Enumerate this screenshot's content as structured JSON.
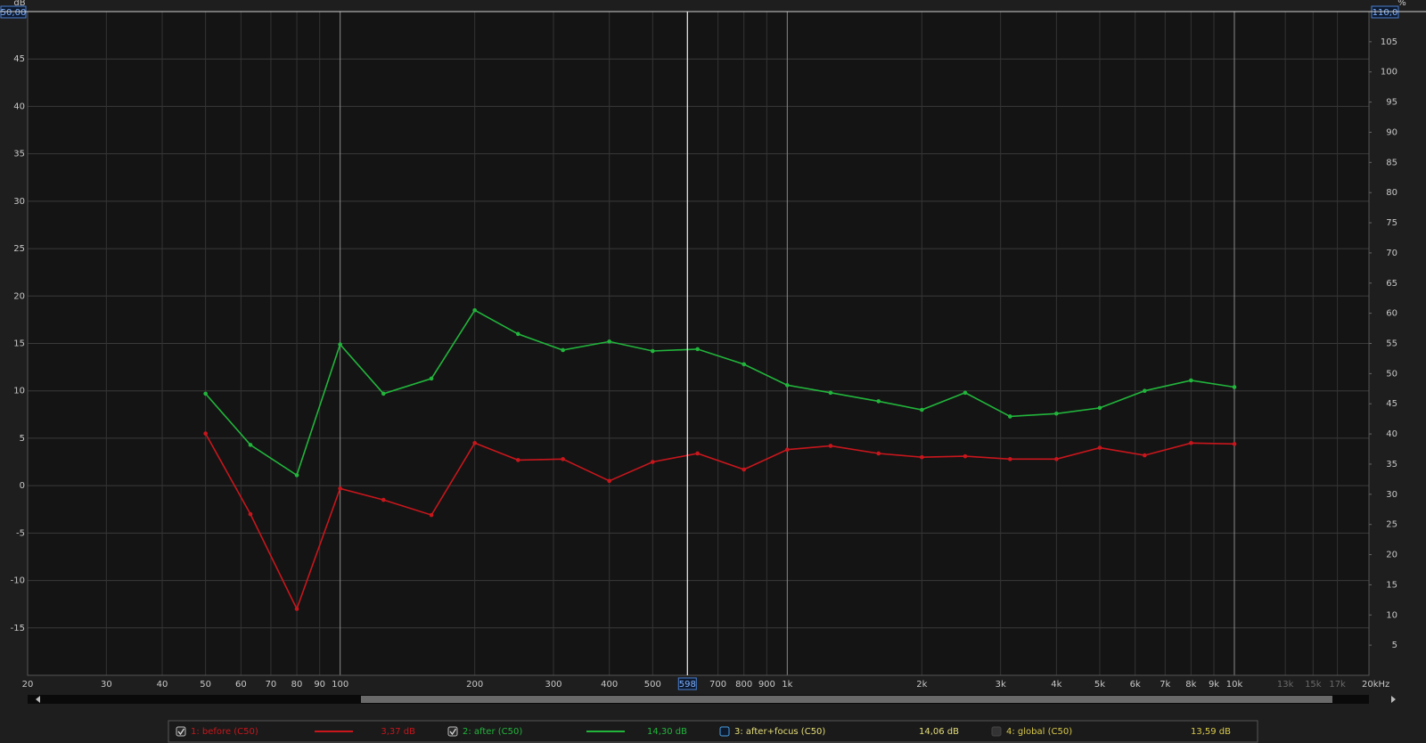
{
  "chart_data": {
    "type": "line",
    "y_label": "dB",
    "y2_label": "%",
    "log_x": true,
    "grid": true,
    "xlim": [
      20,
      20000
    ],
    "xticks": [
      20,
      30,
      40,
      50,
      60,
      70,
      80,
      90,
      100,
      200,
      300,
      400,
      500,
      700,
      800,
      900,
      {
        "value": 1000,
        "label": "1k"
      },
      {
        "value": 2000,
        "label": "2k"
      },
      {
        "value": 3000,
        "label": "3k"
      },
      {
        "value": 4000,
        "label": "4k"
      },
      {
        "value": 5000,
        "label": "5k"
      },
      {
        "value": 6000,
        "label": "6k"
      },
      {
        "value": 7000,
        "label": "7k"
      },
      {
        "value": 8000,
        "label": "8k"
      },
      {
        "value": 9000,
        "label": "9k"
      },
      {
        "value": 10000,
        "label": "10k"
      },
      {
        "value": 13000,
        "label": "13k"
      },
      {
        "value": 15000,
        "label": "15k"
      },
      {
        "value": 17000,
        "label": "17k"
      },
      {
        "value": 20000,
        "label": "20kHz"
      }
    ],
    "ylim": [
      -20,
      50
    ],
    "yticks": [
      -15,
      -10,
      -5,
      0,
      5,
      10,
      15,
      20,
      25,
      30,
      35,
      40,
      45,
      {
        "value": 50,
        "label": "50,00"
      }
    ],
    "y2lim": [
      0,
      110
    ],
    "y2ticks": [
      5,
      10,
      15,
      20,
      25,
      30,
      35,
      40,
      45,
      50,
      55,
      60,
      65,
      70,
      75,
      80,
      85,
      90,
      95,
      100,
      105,
      {
        "value": 110,
        "label": "110,0"
      }
    ],
    "cursor": 598,
    "x": [
      50,
      63,
      80,
      100,
      125,
      160,
      200,
      250,
      315,
      400,
      500,
      630,
      800,
      1000,
      1250,
      1600,
      2000,
      2500,
      3150,
      4000,
      5000,
      6300,
      8000,
      10000
    ],
    "series": [
      {
        "name": "1: before (C50)",
        "color": "#c8161c",
        "readout": "3,37 dB",
        "values": [
          5.5,
          -3.0,
          -13.0,
          -0.3,
          -1.5,
          -3.1,
          4.5,
          2.7,
          2.8,
          0.5,
          2.5,
          3.4,
          1.7,
          3.8,
          4.2,
          3.4,
          3.0,
          3.1,
          2.8,
          2.8,
          4.0,
          3.2,
          4.5,
          4.4
        ]
      },
      {
        "name": "2: after (C50)",
        "color": "#22b53c",
        "readout": "14,30 dB",
        "values": [
          9.7,
          4.3,
          1.1,
          14.9,
          9.7,
          11.3,
          18.5,
          16.0,
          14.3,
          15.2,
          14.2,
          14.4,
          12.8,
          10.6,
          9.8,
          8.9,
          8.0,
          9.8,
          7.3,
          7.6,
          8.2,
          10.0,
          11.1,
          10.4
        ]
      }
    ],
    "extra_legend": [
      {
        "name": "3: after+focus (C50)",
        "color": "#e6df7a",
        "readout": "14,06 dB"
      },
      {
        "name": "4: global (C50)",
        "color": "#d9c94a",
        "readout": "13,59 dB"
      }
    ]
  }
}
